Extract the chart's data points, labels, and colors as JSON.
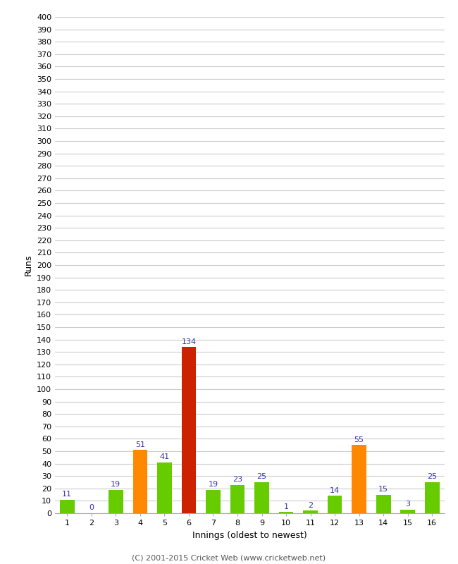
{
  "xlabel": "Innings (oldest to newest)",
  "ylabel": "Runs",
  "footer": "(C) 2001-2015 Cricket Web (www.cricketweb.net)",
  "innings": [
    1,
    2,
    3,
    4,
    5,
    6,
    7,
    8,
    9,
    10,
    11,
    12,
    13,
    14,
    15,
    16
  ],
  "values": [
    11,
    0,
    19,
    51,
    41,
    134,
    19,
    23,
    25,
    1,
    2,
    14,
    55,
    15,
    3,
    25
  ],
  "colors": [
    "#66cc00",
    "#66cc00",
    "#66cc00",
    "#ff8800",
    "#66cc00",
    "#cc2200",
    "#66cc00",
    "#66cc00",
    "#66cc00",
    "#66cc00",
    "#66cc00",
    "#66cc00",
    "#ff8800",
    "#66cc00",
    "#66cc00",
    "#66cc00"
  ],
  "ylim": [
    0,
    400
  ],
  "ytick_step": 10,
  "label_color": "#3333aa",
  "background_color": "#ffffff",
  "grid_color": "#cccccc",
  "bar_width": 0.6,
  "footer_color": "#555555",
  "axis_label_fontsize": 9,
  "tick_fontsize": 8,
  "value_label_fontsize": 8
}
